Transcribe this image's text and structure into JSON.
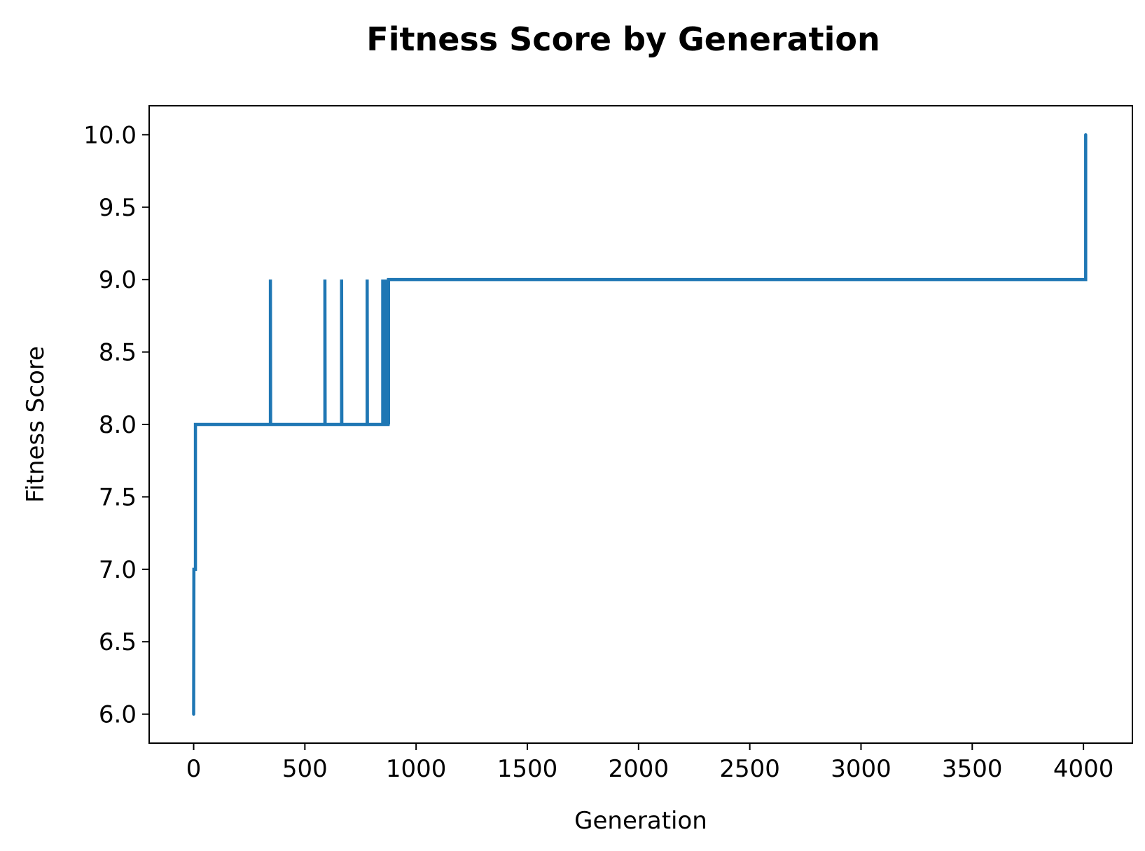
{
  "chart_data": {
    "type": "line",
    "title": "Fitness Score by Generation",
    "xlabel": "Generation",
    "ylabel": "Fitness Score",
    "xlim": [
      -200,
      4220
    ],
    "ylim": [
      5.8,
      10.2
    ],
    "xticks": [
      0,
      500,
      1000,
      1500,
      2000,
      2500,
      3000,
      3500,
      4000
    ],
    "xtick_labels": [
      "0",
      "500",
      "1000",
      "1500",
      "2000",
      "2500",
      "3000",
      "3500",
      "4000"
    ],
    "yticks": [
      6.0,
      6.5,
      7.0,
      7.5,
      8.0,
      8.5,
      9.0,
      9.5,
      10.0
    ],
    "ytick_labels": [
      "6.0",
      "6.5",
      "7.0",
      "7.5",
      "8.0",
      "8.5",
      "9.0",
      "9.5",
      "10.0"
    ],
    "grid": false,
    "series": [
      {
        "color": "#1f77b4",
        "x": [
          0,
          0,
          1,
          2,
          3,
          8,
          8,
          345,
          345,
          346,
          590,
          590,
          591,
          665,
          665,
          666,
          780,
          780,
          781,
          850,
          850,
          852,
          856,
          856,
          858,
          862,
          862,
          864,
          868,
          868,
          870,
          874,
          874,
          876,
          876,
          4010,
          4010
        ],
        "y": [
          6,
          6,
          7,
          7,
          7,
          7,
          8,
          8,
          9,
          8,
          8,
          9,
          8,
          8,
          9,
          8,
          8,
          9,
          8,
          8,
          9,
          8,
          8,
          9,
          8,
          8,
          9,
          8,
          8,
          9,
          8,
          8,
          9,
          8,
          9,
          9,
          10
        ]
      }
    ]
  }
}
